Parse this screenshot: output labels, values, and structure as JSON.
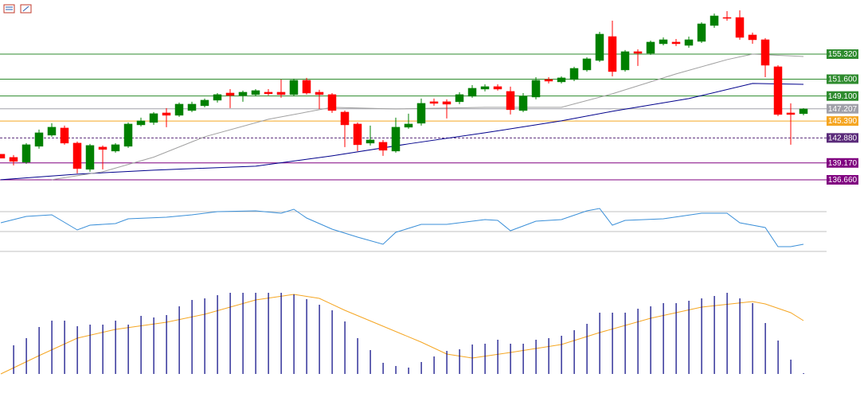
{
  "chart_data": [
    {
      "type": "candlestick",
      "ylim": [
        134.42,
        163.35
      ],
      "up_color": "#008000",
      "down_color": "#ff0000",
      "open": [
        140.46,
        139.99,
        139.28,
        141.64,
        143.29,
        144.35,
        142.11,
        138.22,
        141.52,
        140.93,
        141.64,
        144.82,
        145.18,
        146.59,
        146.24,
        146.95,
        147.66,
        148.48,
        149.54,
        149.19,
        149.31,
        149.66,
        149.66,
        149.31,
        151.43,
        149.66,
        149.31,
        146.71,
        144.94,
        142.11,
        142.23,
        140.93,
        144.47,
        145.06,
        148.25,
        148.25,
        148.25,
        149.07,
        150.13,
        150.49,
        149.78,
        146.95,
        148.95,
        151.55,
        151.2,
        151.55,
        152.97,
        154.38,
        157.92,
        152.97,
        155.68,
        155.44,
        156.86,
        157.1,
        156.62,
        157.21,
        159.57,
        160.75,
        160.75,
        158.16,
        157.45,
        153.44,
        146.59,
        146.48
      ],
      "high": [
        140.46,
        140.34,
        142.11,
        144.12,
        145.06,
        144.71,
        142.35,
        141.99,
        141.76,
        142.11,
        145.18,
        145.89,
        146.71,
        147.3,
        148.13,
        148.25,
        148.72,
        149.54,
        150.13,
        149.9,
        150.13,
        150.13,
        151.55,
        151.67,
        151.79,
        150.02,
        149.54,
        146.95,
        145.18,
        144.71,
        142.58,
        145.89,
        146.48,
        148.72,
        148.72,
        148.6,
        149.66,
        150.72,
        150.84,
        150.84,
        150.49,
        149.54,
        151.9,
        151.9,
        152.02,
        153.44,
        154.85,
        158.63,
        160.28,
        155.92,
        156.03,
        157.33,
        157.8,
        157.57,
        157.92,
        160.05,
        161.34,
        161.7,
        161.82,
        158.51,
        157.69,
        153.67,
        148.01,
        147.3
      ],
      "low": [
        139.87,
        138.81,
        139.04,
        141.28,
        143.05,
        141.87,
        137.63,
        137.86,
        138.22,
        140.69,
        141.4,
        144.59,
        144.82,
        144.47,
        146.0,
        146.71,
        147.42,
        148.13,
        147.3,
        148.25,
        149.07,
        149.19,
        148.84,
        149.07,
        149.31,
        147.18,
        146.59,
        141.52,
        140.93,
        141.76,
        140.22,
        140.69,
        144.23,
        144.71,
        147.66,
        145.77,
        147.89,
        148.84,
        149.78,
        149.9,
        146.36,
        146.71,
        148.6,
        150.96,
        150.96,
        151.31,
        152.73,
        154.15,
        152.02,
        152.73,
        153.56,
        155.21,
        156.62,
        156.51,
        156.27,
        156.98,
        159.22,
        160.28,
        157.45,
        156.86,
        151.9,
        146.12,
        141.87,
        146.24
      ],
      "close": [
        139.87,
        139.4,
        141.87,
        143.64,
        144.47,
        142.11,
        138.33,
        141.76,
        141.17,
        141.87,
        144.94,
        145.41,
        146.48,
        146.24,
        147.89,
        147.89,
        148.48,
        149.31,
        149.19,
        149.66,
        149.9,
        149.43,
        149.31,
        151.43,
        149.54,
        149.31,
        146.95,
        144.82,
        141.87,
        142.58,
        141.05,
        144.47,
        144.94,
        148.01,
        148.01,
        147.89,
        149.31,
        150.25,
        150.49,
        150.13,
        147.07,
        149.07,
        151.43,
        151.31,
        151.79,
        153.2,
        154.62,
        158.28,
        152.73,
        155.68,
        155.44,
        157.1,
        157.45,
        156.86,
        157.45,
        159.81,
        160.99,
        160.64,
        157.8,
        157.45,
        153.67,
        146.36,
        146.36,
        147.18
      ],
      "lines": [
        {
          "color": "#00008b",
          "x": [
            0,
            6,
            12,
            20,
            26,
            32,
            38,
            44,
            48,
            54,
            59,
            63
          ],
          "values": [
            136.68,
            137.51,
            138.1,
            138.69,
            140.22,
            142.0,
            143.64,
            145.41,
            146.83,
            148.72,
            150.96,
            150.84
          ]
        },
        {
          "color": "#a0a0a0",
          "x": [
            4,
            8,
            12,
            16,
            21,
            26,
            31,
            38,
            44,
            48,
            53,
            57,
            59,
            63
          ],
          "values": [
            136.68,
            137.86,
            140.03,
            143.05,
            145.65,
            147.42,
            147.18,
            147.42,
            147.42,
            149.43,
            152.38,
            154.5,
            155.32,
            154.97
          ]
        }
      ],
      "levels": [
        {
          "value": 155.32,
          "label": "155.320",
          "color": "#2e8b2e"
        },
        {
          "value": 151.6,
          "label": "151.600",
          "color": "#2e8b2e"
        },
        {
          "value": 149.1,
          "label": "149.100",
          "color": "#2e8b2e"
        },
        {
          "value": 147.207,
          "label": "147.207",
          "color": "#a0a0a8"
        },
        {
          "value": 145.39,
          "label": "145.390",
          "color": "#f5a623"
        },
        {
          "value": 142.88,
          "label": "142.880",
          "color": "#5a2a7a",
          "dashed": true
        },
        {
          "value": 139.17,
          "label": "139.170",
          "color": "#800080"
        },
        {
          "value": 136.66,
          "label": "136.660",
          "color": "#800080"
        }
      ]
    },
    {
      "type": "line",
      "ylim": [
        18.8,
        82.8
      ],
      "yticks": [
        30,
        50,
        70
      ],
      "grid": true,
      "series": [
        {
          "color": "#3a8fd8",
          "x": [
            0,
            1,
            2,
            4,
            6,
            7,
            9,
            10,
            13,
            15,
            17,
            20,
            22,
            23,
            24,
            26,
            28,
            30,
            31,
            33,
            35,
            38,
            39,
            40,
            42,
            44,
            46,
            47,
            48,
            49,
            52,
            55,
            57,
            58,
            60,
            61,
            62,
            63
          ],
          "values": [
            58.8,
            62,
            65.2,
            66.8,
            51.6,
            56.4,
            58,
            62.8,
            64.4,
            66.8,
            70,
            70.8,
            68.4,
            72.4,
            63.6,
            52.4,
            44.4,
            37.2,
            49.2,
            57.2,
            57.2,
            62,
            61.2,
            50.8,
            60.4,
            62,
            70.8,
            73.2,
            56.4,
            61.2,
            62.8,
            68.4,
            68.4,
            58.8,
            54,
            34.8,
            34.8,
            37.2
          ]
        }
      ]
    },
    {
      "type": "bar",
      "ylim": [
        0,
        115
      ],
      "color": "#000080",
      "values": [
        null,
        36,
        45,
        59,
        67,
        67,
        60,
        62,
        62,
        67,
        62,
        73,
        71,
        74,
        85,
        93,
        95,
        99,
        102,
        102,
        102,
        102,
        102,
        100,
        94,
        87,
        80,
        66,
        45,
        30,
        14,
        10,
        8,
        15,
        22,
        29,
        31,
        37,
        38,
        43,
        38,
        38,
        43,
        45,
        48,
        55,
        63,
        77,
        77,
        77,
        82,
        85,
        89,
        89,
        92,
        95,
        98,
        102,
        95,
        89,
        64,
        42,
        18,
        1
      ],
      "series": [
        {
          "color": "#f5a623",
          "x": [
            0,
            3,
            6,
            9,
            13,
            16,
            20,
            23,
            25,
            27,
            30,
            33,
            35,
            37,
            40,
            44,
            47,
            51,
            55,
            59,
            60,
            62,
            63
          ],
          "values": [
            0,
            23,
            45,
            56,
            65,
            75,
            93,
            100,
            95,
            80,
            60,
            40,
            25,
            20,
            27,
            37,
            52,
            70,
            84,
            91,
            88,
            77,
            67
          ]
        }
      ]
    }
  ]
}
